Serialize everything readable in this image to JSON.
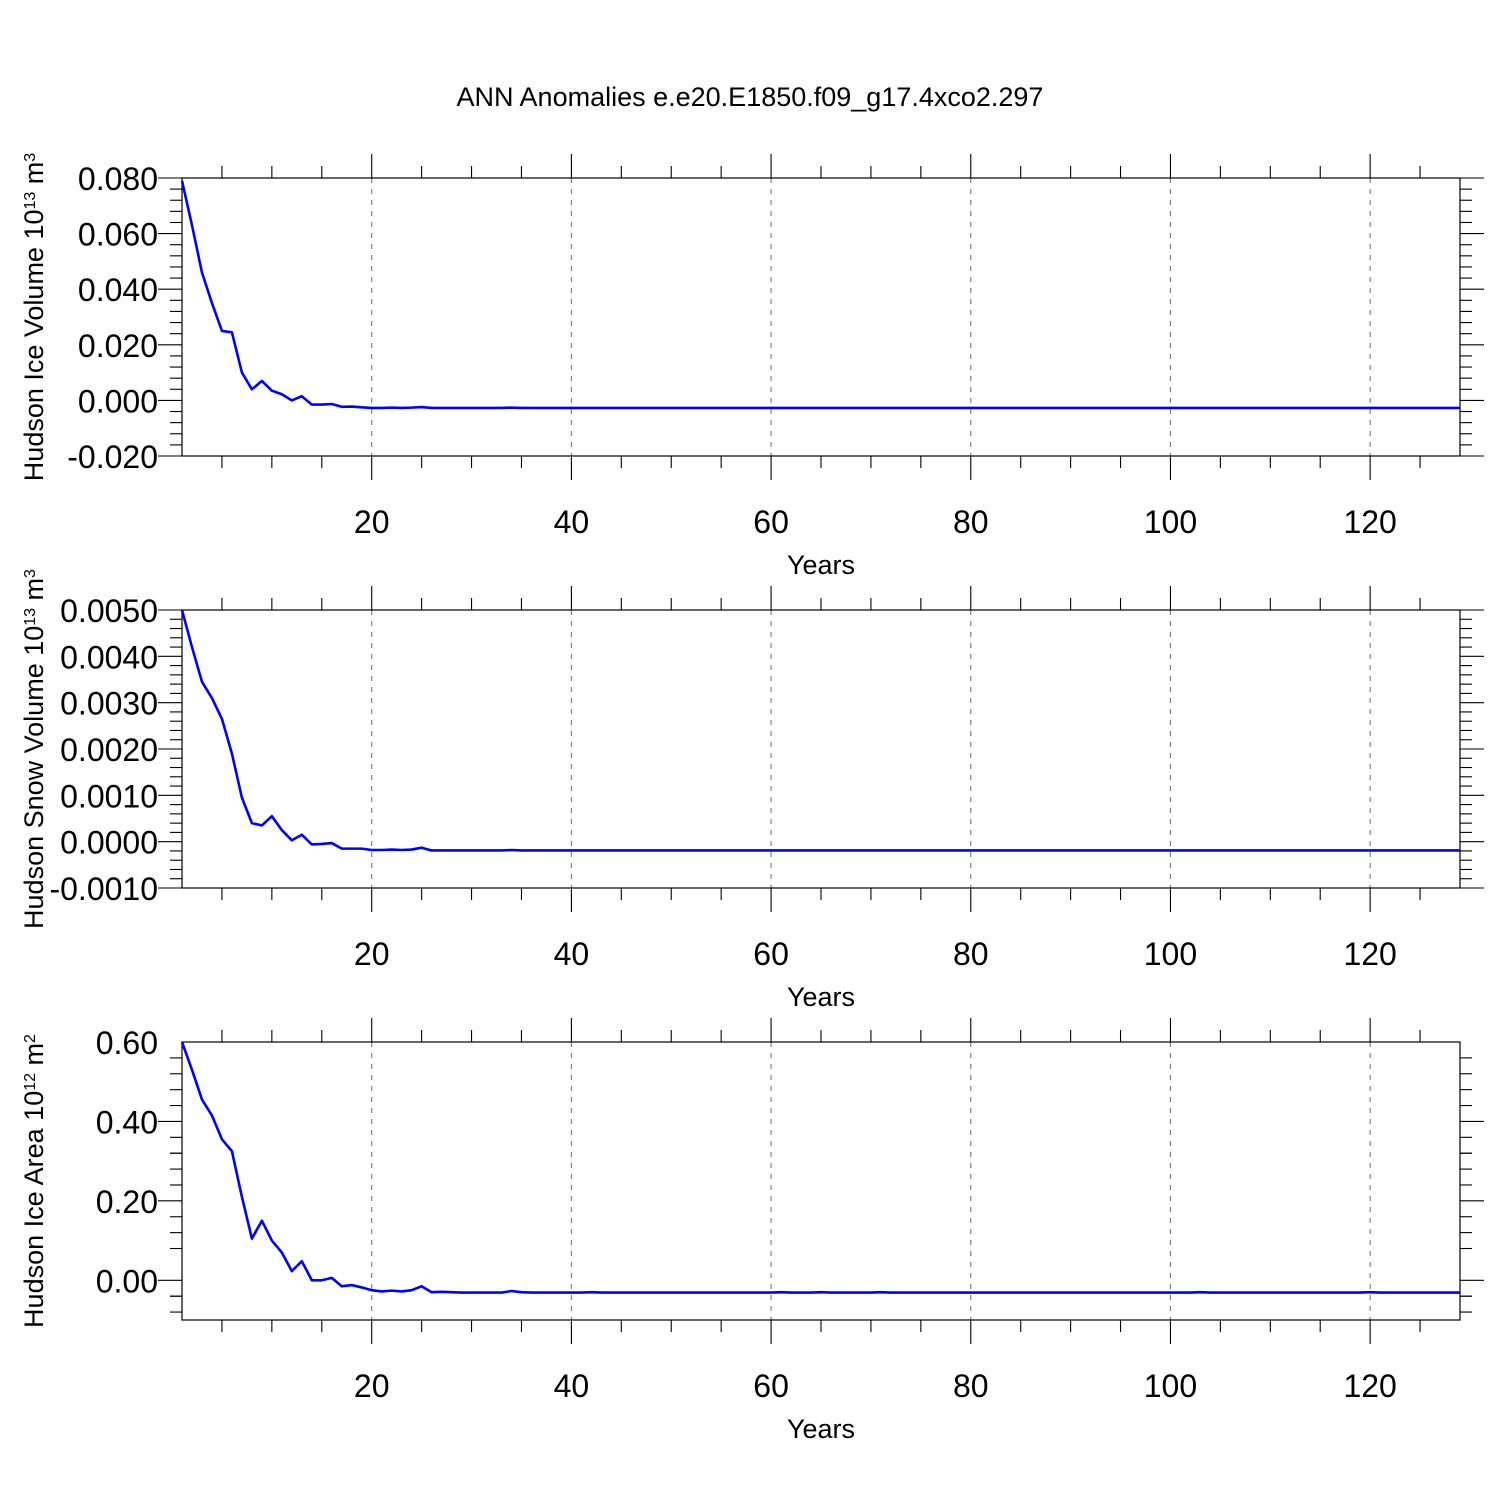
{
  "figure": {
    "title": "ANN Anomalies e.e20.E1850.f09_g17.4xco2.297",
    "line_color": "#0000ff"
  },
  "chart_data": [
    {
      "type": "line",
      "title": "ANN Anomalies e.e20.E1850.f09_g17.4xco2.297",
      "xlabel": "Years",
      "ylabel": {
        "prefix": "Hudson Ice Volume 10",
        "sup": "13",
        "unit": " m",
        "unit_sup": "3"
      },
      "xlim": [
        1,
        129
      ],
      "ylim": [
        -0.02,
        0.08
      ],
      "xticks": [
        20,
        40,
        60,
        80,
        100,
        120
      ],
      "yticks": [
        -0.02,
        0.0,
        0.02,
        0.04,
        0.06,
        0.08
      ],
      "ytick_labels": [
        "-0.020",
        "0.000",
        "0.020",
        "0.040",
        "0.060",
        "0.080"
      ],
      "grid": "x-dashed",
      "x_start": 1,
      "values": [
        0.079,
        0.063,
        0.046,
        0.035,
        0.025,
        0.0245,
        0.01,
        0.004,
        0.007,
        0.0035,
        0.0022,
        0.0,
        0.0015,
        -0.0015,
        -0.0015,
        -0.0013,
        -0.0023,
        -0.0022,
        -0.0025,
        -0.0027,
        -0.0027,
        -0.0026,
        -0.0027,
        -0.0026,
        -0.0024,
        -0.0027,
        -0.0027,
        -0.0027,
        -0.0027,
        -0.0027,
        -0.0027,
        -0.0027,
        -0.0027,
        -0.0026,
        -0.0027,
        -0.0027,
        -0.0027,
        -0.0027,
        -0.0027,
        -0.0027,
        -0.0027,
        -0.0027,
        -0.0027,
        -0.0027,
        -0.0027,
        -0.0027,
        -0.0027,
        -0.0027,
        -0.0027,
        -0.0027,
        -0.0027,
        -0.0027,
        -0.0027,
        -0.0027,
        -0.0027,
        -0.0027,
        -0.0027,
        -0.0027,
        -0.0027,
        -0.0027,
        -0.0027,
        -0.0027,
        -0.0027,
        -0.0027,
        -0.0027,
        -0.0027,
        -0.0027,
        -0.0027,
        -0.0027,
        -0.0027,
        -0.0027,
        -0.0027,
        -0.0027,
        -0.0027,
        -0.0027,
        -0.0027,
        -0.0027,
        -0.0027,
        -0.0027,
        -0.0027,
        -0.0027,
        -0.0027,
        -0.0027,
        -0.0027,
        -0.0027,
        -0.0027,
        -0.0027,
        -0.0027,
        -0.0027,
        -0.0027,
        -0.0027,
        -0.0027,
        -0.0027,
        -0.0027,
        -0.0027,
        -0.0027,
        -0.0027,
        -0.0027,
        -0.0027,
        -0.0027,
        -0.0027,
        -0.0027,
        -0.0027,
        -0.0027,
        -0.0027,
        -0.0027,
        -0.0027,
        -0.0027,
        -0.0027,
        -0.0027,
        -0.0027,
        -0.0027,
        -0.0027,
        -0.0027,
        -0.0027,
        -0.0027,
        -0.0027,
        -0.0027,
        -0.0027,
        -0.0027,
        -0.0027,
        -0.0027,
        -0.0027,
        -0.0027,
        -0.0027,
        -0.0027,
        -0.0027,
        -0.0027,
        -0.0027
      ]
    },
    {
      "type": "line",
      "xlabel": "Years",
      "ylabel": {
        "prefix": "Hudson Snow Volume 10",
        "sup": "13",
        "unit": " m",
        "unit_sup": "3"
      },
      "xlim": [
        1,
        129
      ],
      "ylim": [
        -0.001,
        0.005
      ],
      "xticks": [
        20,
        40,
        60,
        80,
        100,
        120
      ],
      "yticks": [
        -0.001,
        0.0,
        0.001,
        0.002,
        0.003,
        0.004,
        0.005
      ],
      "ytick_labels": [
        "-0.0010",
        "0.0000",
        "0.0010",
        "0.0020",
        "0.0030",
        "0.0040",
        "0.0050"
      ],
      "grid": "x-dashed",
      "x_start": 1,
      "values": [
        0.005,
        0.0042,
        0.00345,
        0.0031,
        0.00265,
        0.0019,
        0.00095,
        0.0004,
        0.00035,
        0.00055,
        0.00025,
        3e-05,
        0.00015,
        -6e-05,
        -5e-05,
        -3e-05,
        -0.00015,
        -0.00015,
        -0.00015,
        -0.00018,
        -0.00018,
        -0.00017,
        -0.00018,
        -0.00017,
        -0.00013,
        -0.00019,
        -0.00019,
        -0.00019,
        -0.00019,
        -0.00019,
        -0.00019,
        -0.00019,
        -0.00019,
        -0.00018,
        -0.00019,
        -0.00019,
        -0.00019,
        -0.00019,
        -0.00019,
        -0.00019,
        -0.00019,
        -0.00019,
        -0.00019,
        -0.00019,
        -0.00019,
        -0.00019,
        -0.00019,
        -0.00019,
        -0.00019,
        -0.00019,
        -0.00019,
        -0.00019,
        -0.00019,
        -0.00019,
        -0.00019,
        -0.00019,
        -0.00019,
        -0.00019,
        -0.00019,
        -0.00019,
        -0.00019,
        -0.00019,
        -0.00019,
        -0.00019,
        -0.00019,
        -0.00019,
        -0.00019,
        -0.00019,
        -0.00019,
        -0.00019,
        -0.00019,
        -0.00019,
        -0.00019,
        -0.00019,
        -0.00019,
        -0.00019,
        -0.00019,
        -0.00019,
        -0.00019,
        -0.00019,
        -0.00019,
        -0.00019,
        -0.00019,
        -0.00019,
        -0.00019,
        -0.00019,
        -0.00019,
        -0.00019,
        -0.00019,
        -0.00019,
        -0.00019,
        -0.00019,
        -0.00019,
        -0.00019,
        -0.00019,
        -0.00019,
        -0.00019,
        -0.00019,
        -0.00019,
        -0.00019,
        -0.00019,
        -0.00019,
        -0.00019,
        -0.00019,
        -0.00019,
        -0.00019,
        -0.00019,
        -0.00019,
        -0.00019,
        -0.00019,
        -0.00019,
        -0.00019,
        -0.00019,
        -0.00019,
        -0.00019,
        -0.00019,
        -0.00019,
        -0.00019,
        -0.00019,
        -0.00019,
        -0.00019,
        -0.00019,
        -0.00019,
        -0.00019,
        -0.00019,
        -0.00019,
        -0.00019,
        -0.00019,
        -0.00019
      ]
    },
    {
      "type": "line",
      "xlabel": "Years",
      "ylabel": {
        "prefix": "Hudson Ice Area 10",
        "sup": "12",
        "unit": " m",
        "unit_sup": "2"
      },
      "xlim": [
        1,
        129
      ],
      "ylim": [
        -0.1,
        0.6
      ],
      "xticks": [
        20,
        40,
        60,
        80,
        100,
        120
      ],
      "yticks": [
        0.0,
        0.2,
        0.4,
        0.6
      ],
      "ytick_labels": [
        "0.00",
        "0.20",
        "0.40",
        "0.60"
      ],
      "grid": "x-dashed",
      "x_start": 1,
      "values": [
        0.6,
        0.53,
        0.455,
        0.415,
        0.355,
        0.325,
        0.21,
        0.105,
        0.15,
        0.1,
        0.07,
        0.023,
        0.048,
        0.0,
        0.0,
        0.006,
        -0.015,
        -0.012,
        -0.018,
        -0.025,
        -0.028,
        -0.026,
        -0.028,
        -0.025,
        -0.015,
        -0.03,
        -0.029,
        -0.03,
        -0.031,
        -0.031,
        -0.031,
        -0.031,
        -0.031,
        -0.027,
        -0.03,
        -0.031,
        -0.031,
        -0.031,
        -0.031,
        -0.031,
        -0.031,
        -0.03,
        -0.031,
        -0.031,
        -0.031,
        -0.031,
        -0.031,
        -0.031,
        -0.031,
        -0.031,
        -0.031,
        -0.031,
        -0.031,
        -0.031,
        -0.031,
        -0.031,
        -0.031,
        -0.031,
        -0.031,
        -0.031,
        -0.03,
        -0.031,
        -0.031,
        -0.031,
        -0.03,
        -0.031,
        -0.031,
        -0.031,
        -0.031,
        -0.031,
        -0.03,
        -0.031,
        -0.031,
        -0.031,
        -0.031,
        -0.031,
        -0.031,
        -0.031,
        -0.031,
        -0.031,
        -0.031,
        -0.031,
        -0.031,
        -0.031,
        -0.031,
        -0.031,
        -0.031,
        -0.031,
        -0.031,
        -0.031,
        -0.031,
        -0.031,
        -0.031,
        -0.031,
        -0.031,
        -0.031,
        -0.031,
        -0.031,
        -0.031,
        -0.031,
        -0.031,
        -0.031,
        -0.03,
        -0.031,
        -0.031,
        -0.031,
        -0.031,
        -0.031,
        -0.031,
        -0.031,
        -0.031,
        -0.031,
        -0.031,
        -0.031,
        -0.031,
        -0.031,
        -0.031,
        -0.031,
        -0.031,
        -0.03,
        -0.031,
        -0.031,
        -0.031,
        -0.031,
        -0.031,
        -0.031,
        -0.031,
        -0.031,
        -0.031
      ]
    }
  ]
}
